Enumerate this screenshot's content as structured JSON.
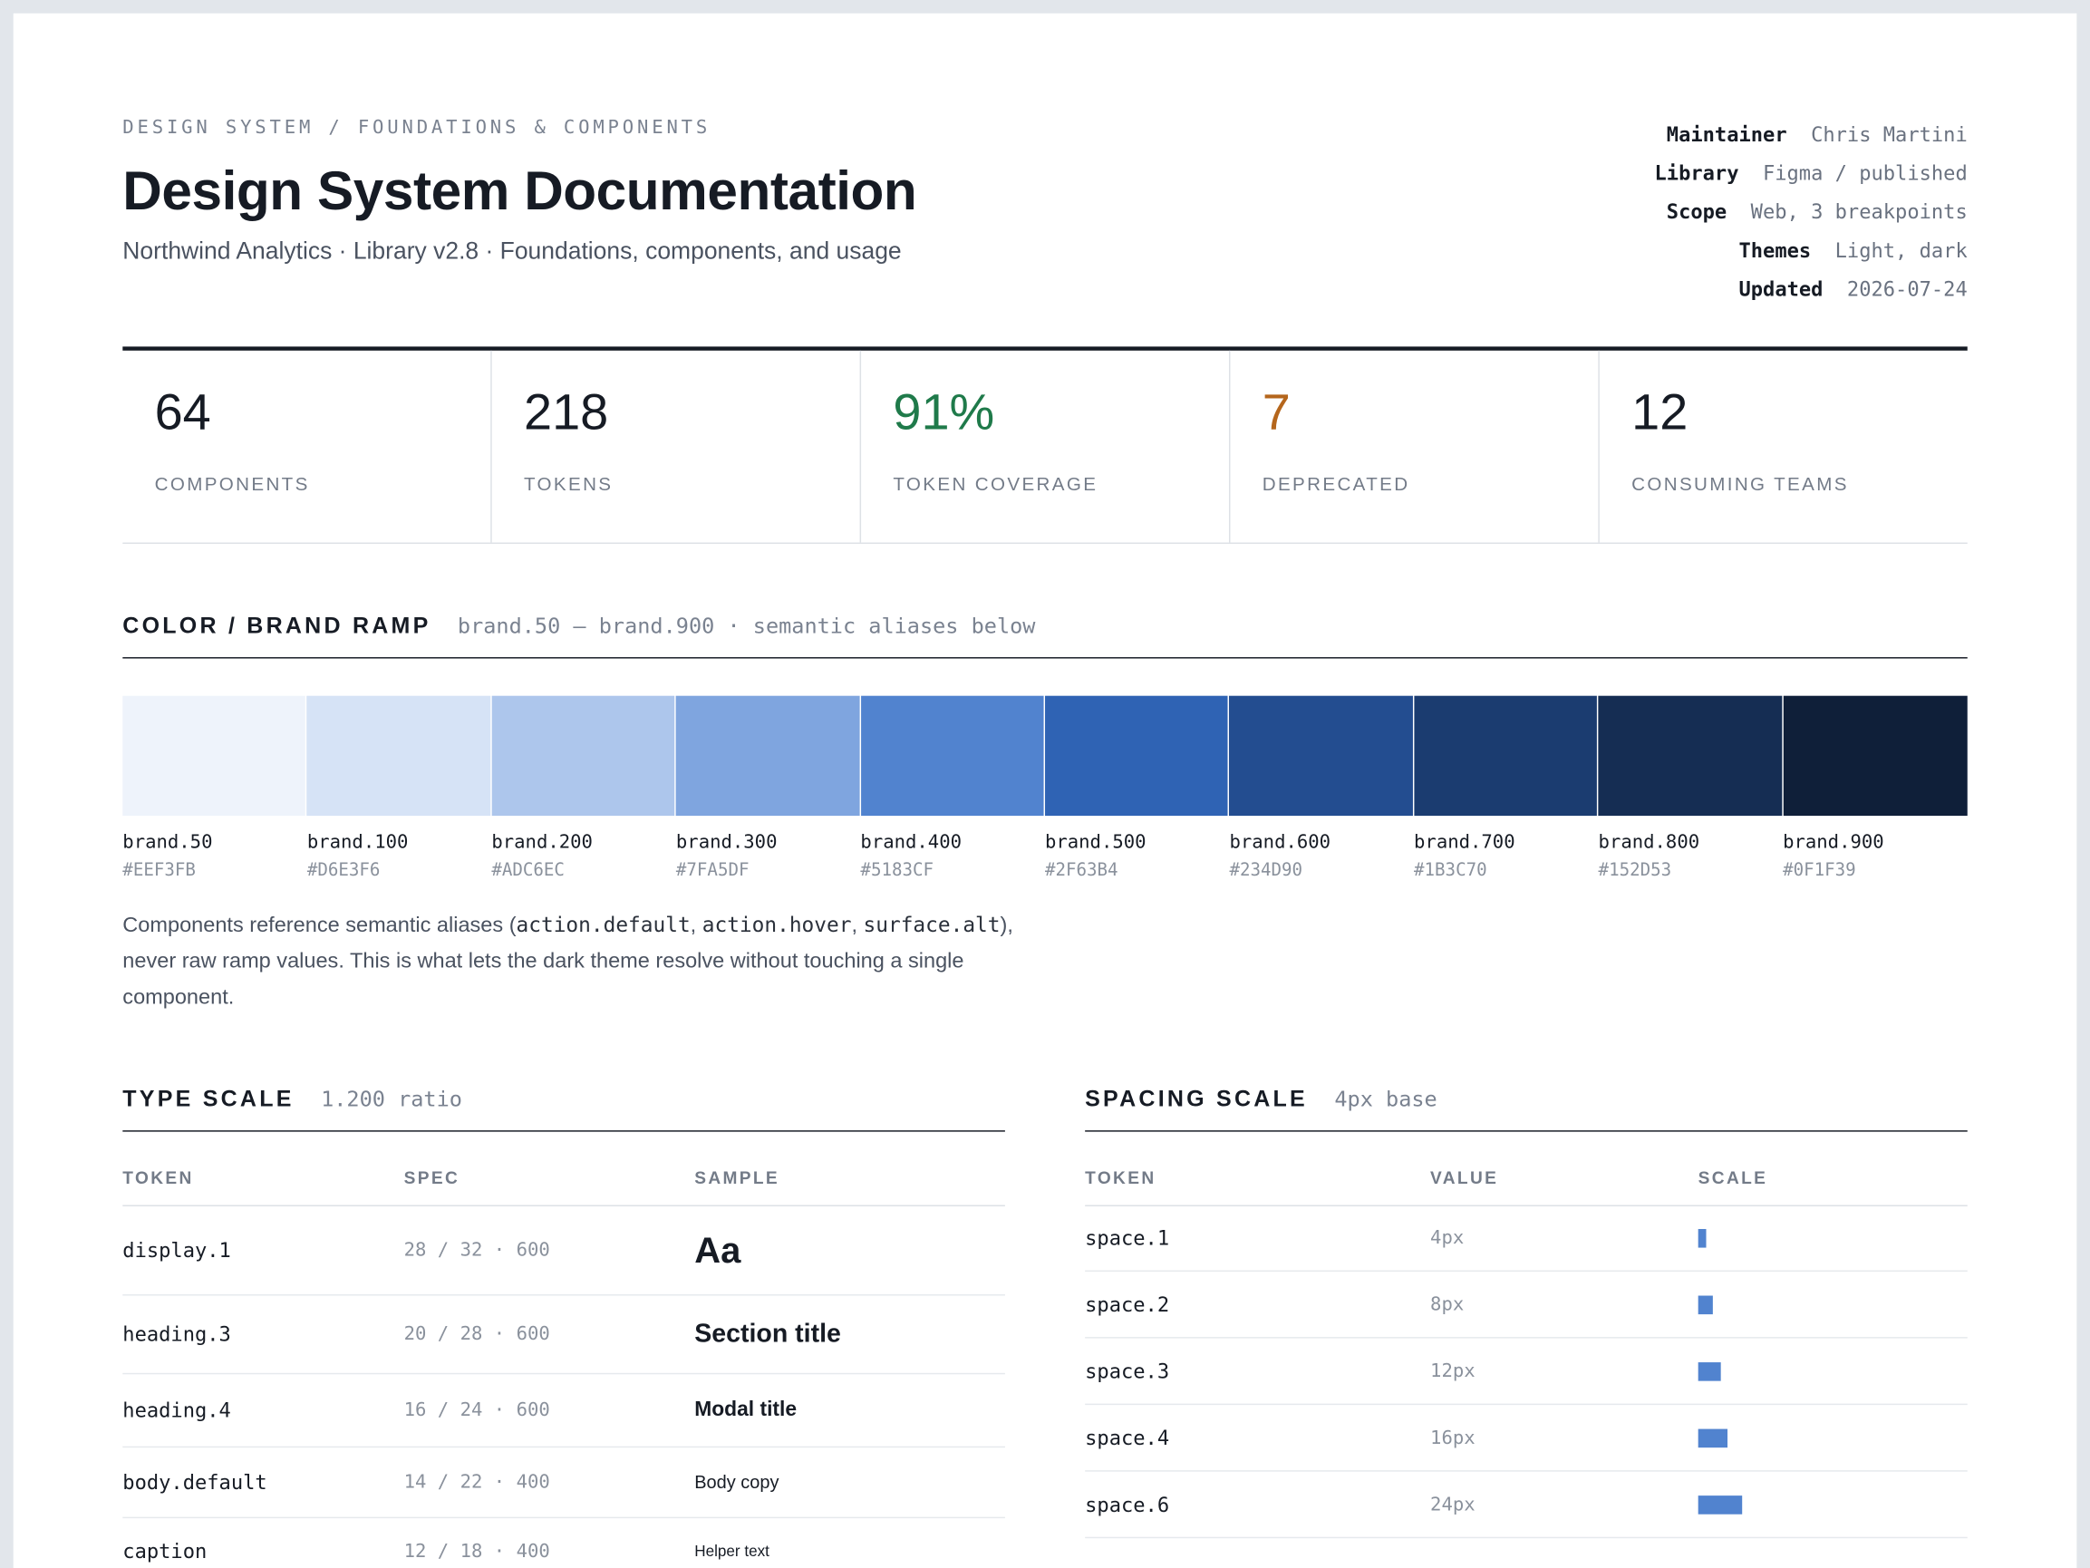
{
  "header": {
    "breadcrumb": "DESIGN SYSTEM / FOUNDATIONS & COMPONENTS",
    "title": "Design System Documentation",
    "subtitle": "Northwind Analytics · Library v2.8 · Foundations, components, and usage",
    "meta": [
      {
        "label": "Maintainer",
        "value": "Chris Martini"
      },
      {
        "label": "Library",
        "value": "Figma / published"
      },
      {
        "label": "Scope",
        "value": "Web, 3 breakpoints"
      },
      {
        "label": "Themes",
        "value": "Light, dark"
      },
      {
        "label": "Updated",
        "value": "2026-07-24"
      }
    ]
  },
  "stats": [
    {
      "value": "64",
      "label": "COMPONENTS"
    },
    {
      "value": "218",
      "label": "TOKENS"
    },
    {
      "value": "91%",
      "label": "TOKEN COVERAGE"
    },
    {
      "value": "7",
      "label": "DEPRECATED"
    },
    {
      "value": "12",
      "label": "CONSUMING TEAMS"
    }
  ],
  "color": {
    "title": "COLOR / BRAND RAMP",
    "note": "brand.50 – brand.900 · semantic aliases below",
    "swatches": [
      {
        "name": "brand.50",
        "hex": "#EEF3FB"
      },
      {
        "name": "brand.100",
        "hex": "#D6E3F6"
      },
      {
        "name": "brand.200",
        "hex": "#ADC6EC"
      },
      {
        "name": "brand.300",
        "hex": "#7FA5DF"
      },
      {
        "name": "brand.400",
        "hex": "#5183CF"
      },
      {
        "name": "brand.500",
        "hex": "#2F63B4"
      },
      {
        "name": "brand.600",
        "hex": "#234D90"
      },
      {
        "name": "brand.700",
        "hex": "#1B3C70"
      },
      {
        "name": "brand.800",
        "hex": "#152D53"
      },
      {
        "name": "brand.900",
        "hex": "#0F1F39"
      }
    ],
    "paragraph": [
      {
        "text": "Components reference semantic aliases ("
      },
      {
        "code": "action.default"
      },
      {
        "text": ", "
      },
      {
        "code": "action.hover"
      },
      {
        "text": ", "
      },
      {
        "code": "surface.alt"
      },
      {
        "text": "), never raw ramp values. This is what lets the dark theme resolve without touching a single component."
      }
    ]
  },
  "type_scale": {
    "title": "TYPE SCALE",
    "note": "1.200 ratio",
    "columns": [
      "TOKEN",
      "SPEC",
      "SAMPLE"
    ],
    "rows": [
      {
        "token": "display.1",
        "spec": "28 / 32 · 600",
        "sample": "Aa"
      },
      {
        "token": "heading.3",
        "spec": "20 / 28 · 600",
        "sample": "Section title"
      },
      {
        "token": "heading.4",
        "spec": "16 / 24 · 600",
        "sample": "Modal title"
      },
      {
        "token": "body.default",
        "spec": "14 / 22 · 400",
        "sample": "Body copy"
      },
      {
        "token": "caption",
        "spec": "12 / 18 · 400",
        "sample": "Helper text"
      }
    ]
  },
  "spacing_scale": {
    "title": "SPACING SCALE",
    "note": "4px base",
    "columns": [
      "TOKEN",
      "VALUE",
      "SCALE"
    ],
    "rows": [
      {
        "token": "space.1",
        "value": "4px"
      },
      {
        "token": "space.2",
        "value": "8px"
      },
      {
        "token": "space.3",
        "value": "12px"
      },
      {
        "token": "space.4",
        "value": "16px"
      },
      {
        "token": "space.6",
        "value": "24px"
      }
    ]
  }
}
